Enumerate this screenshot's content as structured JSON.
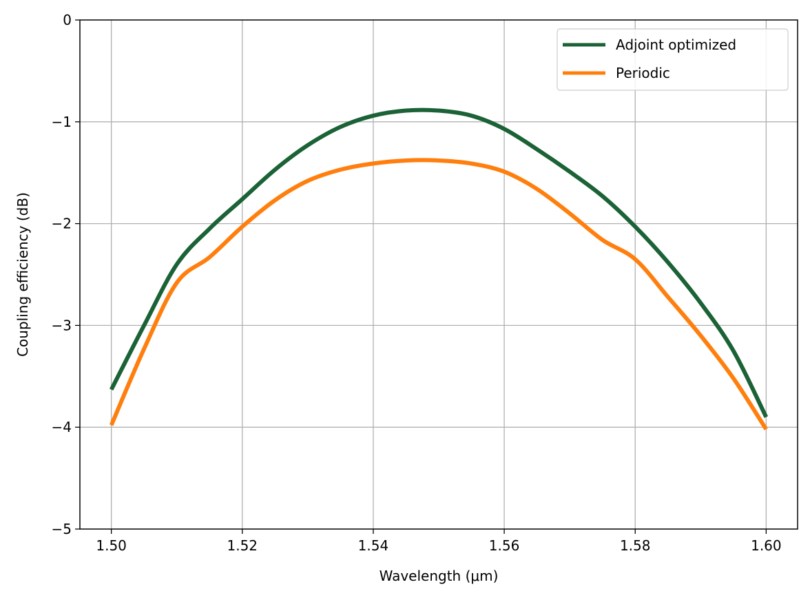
{
  "chart_data": {
    "type": "line",
    "title": "",
    "xlabel": "Wavelength (μm)",
    "ylabel": "Coupling efficiency (dB)",
    "xlim": [
      1.4952,
      1.6048
    ],
    "ylim": [
      -5,
      0
    ],
    "xticks": [
      1.5,
      1.52,
      1.54,
      1.56,
      1.58,
      1.6
    ],
    "xtick_labels": [
      "1.50",
      "1.52",
      "1.54",
      "1.56",
      "1.58",
      "1.60"
    ],
    "yticks": [
      0,
      -1,
      -2,
      -3,
      -4,
      -5
    ],
    "ytick_labels": [
      "0",
      "−1",
      "−2",
      "−3",
      "−4",
      "−5"
    ],
    "grid": true,
    "legend_position": "top-right",
    "x": [
      1.5,
      1.505,
      1.51,
      1.515,
      1.52,
      1.525,
      1.53,
      1.535,
      1.54,
      1.545,
      1.55,
      1.555,
      1.56,
      1.565,
      1.57,
      1.575,
      1.58,
      1.585,
      1.59,
      1.595,
      1.6
    ],
    "series": [
      {
        "name": "Adjoint optimized",
        "color": "#1b6236",
        "values": [
          -3.63,
          -3.0,
          -2.4,
          -2.05,
          -1.76,
          -1.47,
          -1.23,
          -1.05,
          -0.94,
          -0.89,
          -0.89,
          -0.94,
          -1.07,
          -1.27,
          -1.49,
          -1.73,
          -2.03,
          -2.38,
          -2.78,
          -3.25,
          -3.9
        ]
      },
      {
        "name": "Periodic",
        "color": "#ff7f0e",
        "values": [
          -3.98,
          -3.23,
          -2.58,
          -2.33,
          -2.03,
          -1.77,
          -1.58,
          -1.47,
          -1.41,
          -1.38,
          -1.38,
          -1.41,
          -1.49,
          -1.66,
          -1.9,
          -2.16,
          -2.35,
          -2.72,
          -3.1,
          -3.52,
          -4.02
        ]
      }
    ]
  }
}
